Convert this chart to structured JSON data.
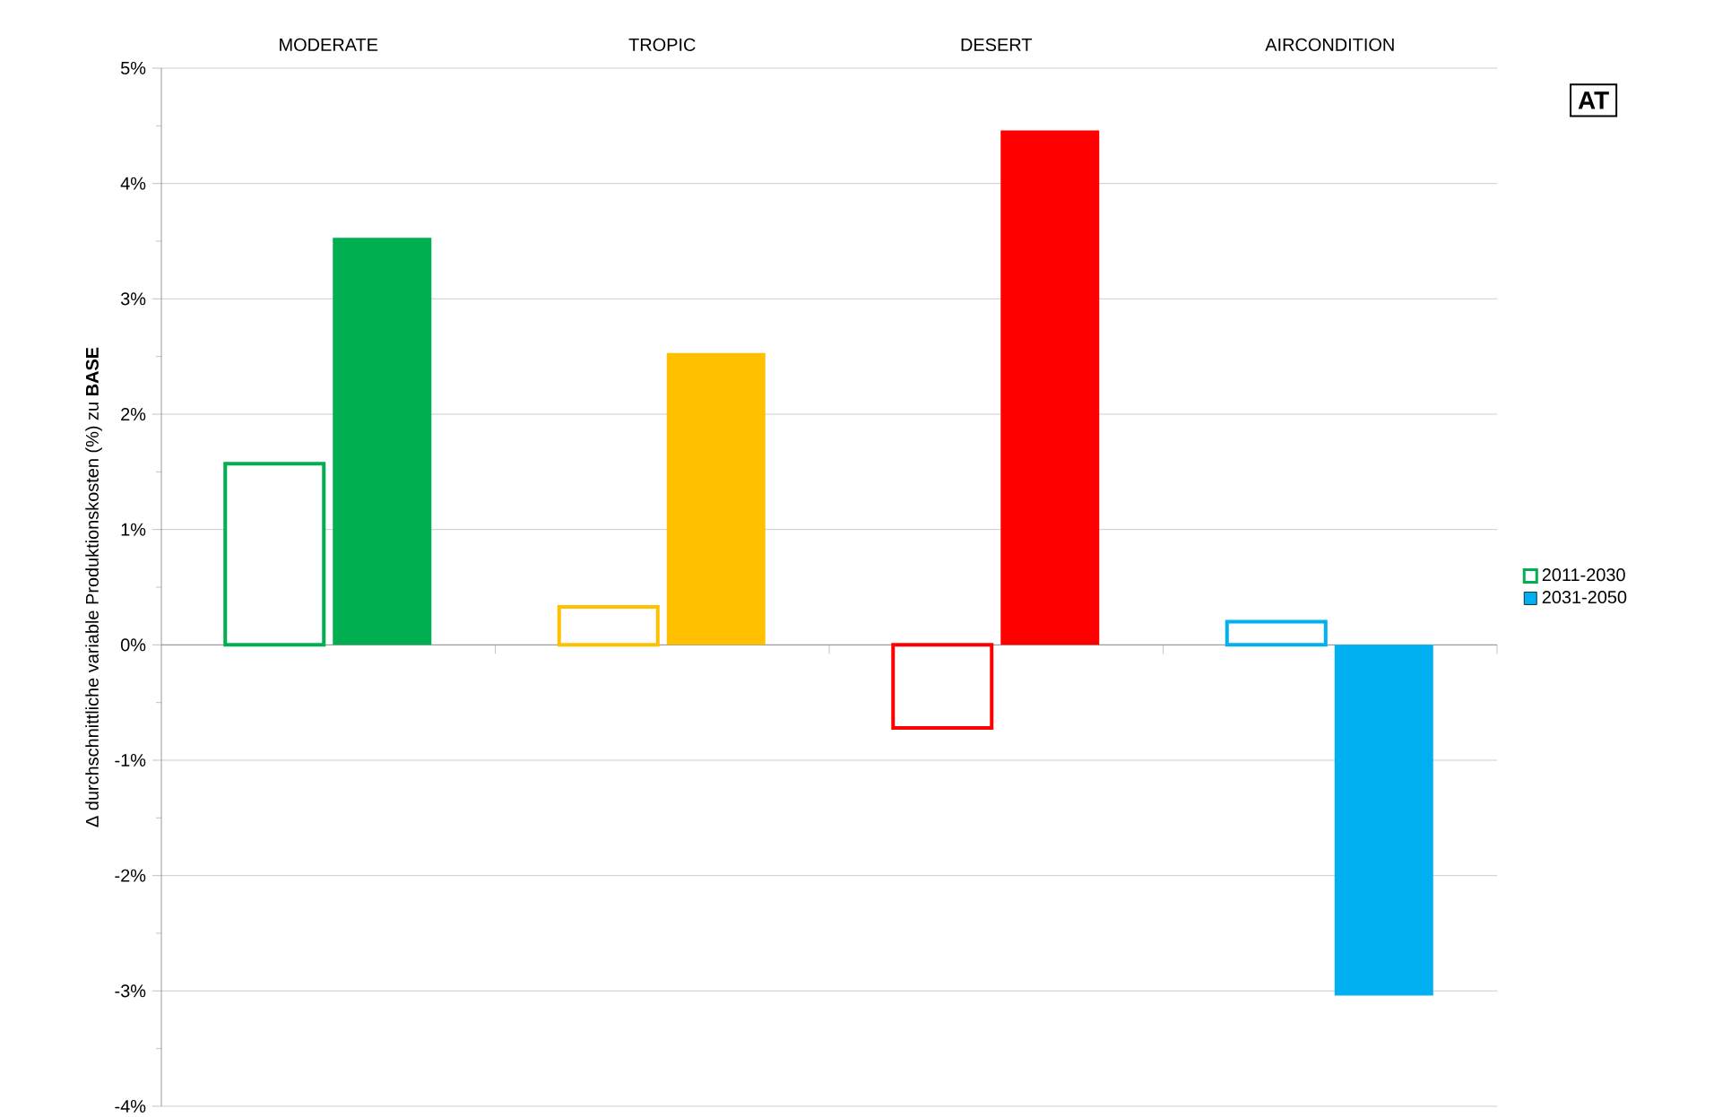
{
  "chart_data": {
    "type": "bar",
    "ylabel": "Δ durchschnittliche variable Produktionskosten (%) zu **BASE**",
    "categories": [
      "MODERATE",
      "TROPIC",
      "DESERT",
      "AIRCONDITION"
    ],
    "series": [
      {
        "name": "2011-2030",
        "color": "#00b050",
        "colors": [
          "#00b050",
          "#ffc000",
          "#ff0000",
          "#00b0f0"
        ],
        "values": [
          1.57,
          0.33,
          -0.72,
          0.2
        ]
      },
      {
        "name": "2031-2050",
        "color": "#00b0f0",
        "colors": [
          "#00b050",
          "#ffc000",
          "#ff0000",
          "#00b0f0"
        ],
        "values": [
          3.53,
          2.53,
          4.46,
          -3.04
        ]
      }
    ],
    "ylim": [
      -4,
      5
    ],
    "yticks": [
      {
        "value": -4,
        "label": "-4%"
      },
      {
        "value": -3,
        "label": "-3%"
      },
      {
        "value": -2,
        "label": "-2%"
      },
      {
        "value": -1,
        "label": "-1%"
      },
      {
        "value": 0,
        "label": "0%"
      },
      {
        "value": 1,
        "label": "1%"
      },
      {
        "value": 2,
        "label": "2%"
      },
      {
        "value": 3,
        "label": "3%"
      },
      {
        "value": 4,
        "label": "4%"
      },
      {
        "value": 5,
        "label": "5%"
      }
    ],
    "grid": "y",
    "legend": "right",
    "annotations": [
      "AT"
    ]
  }
}
